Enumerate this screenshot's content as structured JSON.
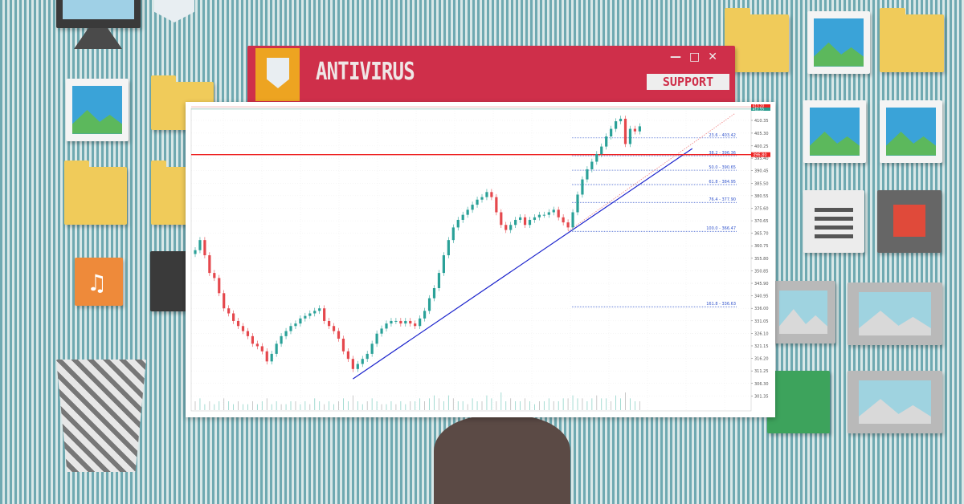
{
  "window": {
    "title": "ANTIVIRUS",
    "support_label": "SUPPORT",
    "controls": [
      "—",
      "□",
      "✕"
    ],
    "accent": "#cf2f4a"
  },
  "chart_data": {
    "type": "candlestick",
    "ylim": [
      299,
      414
    ],
    "y_ticks": [
      "410.35",
      "405.30",
      "400.25",
      "395.40",
      "390.45",
      "385.50",
      "380.55",
      "375.60",
      "370.65",
      "365.70",
      "360.75",
      "355.80",
      "350.85",
      "345.90",
      "340.95",
      "336.00",
      "331.05",
      "326.10",
      "321.15",
      "316.20",
      "311.25",
      "306.30",
      "301.35"
    ],
    "closes": [
      359,
      363,
      357,
      350,
      348,
      342,
      336,
      334,
      331,
      329,
      327,
      325,
      322,
      321,
      319,
      315,
      318,
      322,
      325,
      327,
      329,
      330,
      332,
      333,
      334,
      335,
      336,
      331,
      329,
      327,
      324,
      319,
      316,
      312,
      314,
      316,
      318,
      322,
      326,
      328,
      330,
      331,
      331,
      330,
      331,
      330,
      329,
      332,
      335,
      340,
      344,
      350,
      357,
      363,
      368,
      371,
      373,
      375,
      377,
      379,
      380,
      382,
      380,
      374,
      369,
      367,
      369,
      371,
      372,
      369,
      371,
      372,
      373,
      373,
      374,
      375,
      372,
      370,
      368,
      374,
      381,
      387,
      391,
      394,
      397,
      400,
      404,
      407,
      410,
      411,
      401,
      407,
      406,
      408
    ],
    "volume": [
      3,
      4,
      2,
      3,
      2,
      3,
      4,
      3,
      2,
      3,
      2,
      2,
      3,
      2,
      3,
      4,
      2,
      3,
      2,
      2,
      3,
      3,
      2,
      3,
      2,
      4,
      3,
      2,
      3,
      2,
      3,
      4,
      3,
      5,
      3,
      2,
      3,
      4,
      3,
      2,
      2,
      3,
      2,
      3,
      2,
      3,
      3,
      4,
      3,
      4,
      5,
      4,
      3,
      5,
      4,
      3,
      3,
      2,
      4,
      3,
      3,
      5,
      4,
      3,
      6,
      3,
      4,
      3,
      3,
      4,
      3,
      2,
      3,
      3,
      4,
      3,
      3,
      4,
      4,
      5,
      4,
      4,
      3,
      4,
      5,
      4,
      4,
      3,
      5,
      4,
      6,
      4,
      3,
      3
    ],
    "colors": {
      "up": "#2aa198",
      "down": "#e5484d",
      "trend": "#1a22cc",
      "level": "#ee2222"
    },
    "current_price_label": "396.80",
    "top_price_labels": [
      "413.20",
      "412.55"
    ],
    "horizontal_level": 396.8,
    "trendline": {
      "from": [
        33,
        308.1
      ],
      "to": [
        104,
        399.2
      ]
    },
    "projection_line": {
      "from": [
        78,
        366.5
      ],
      "to": [
        113,
        413.2
      ]
    },
    "fib_levels": [
      {
        "label": "23.6 - 403.42",
        "price": 403.42
      },
      {
        "label": "38.2 - 396.36",
        "price": 396.36
      },
      {
        "label": "50.0 - 390.65",
        "price": 390.65
      },
      {
        "label": "61.8 - 384.95",
        "price": 384.95
      },
      {
        "label": "76.4 - 377.90",
        "price": 377.9
      },
      {
        "label": "100.0 - 366.47",
        "price": 366.47
      },
      {
        "label": "161.8 - 336.63",
        "price": 336.63
      }
    ]
  }
}
